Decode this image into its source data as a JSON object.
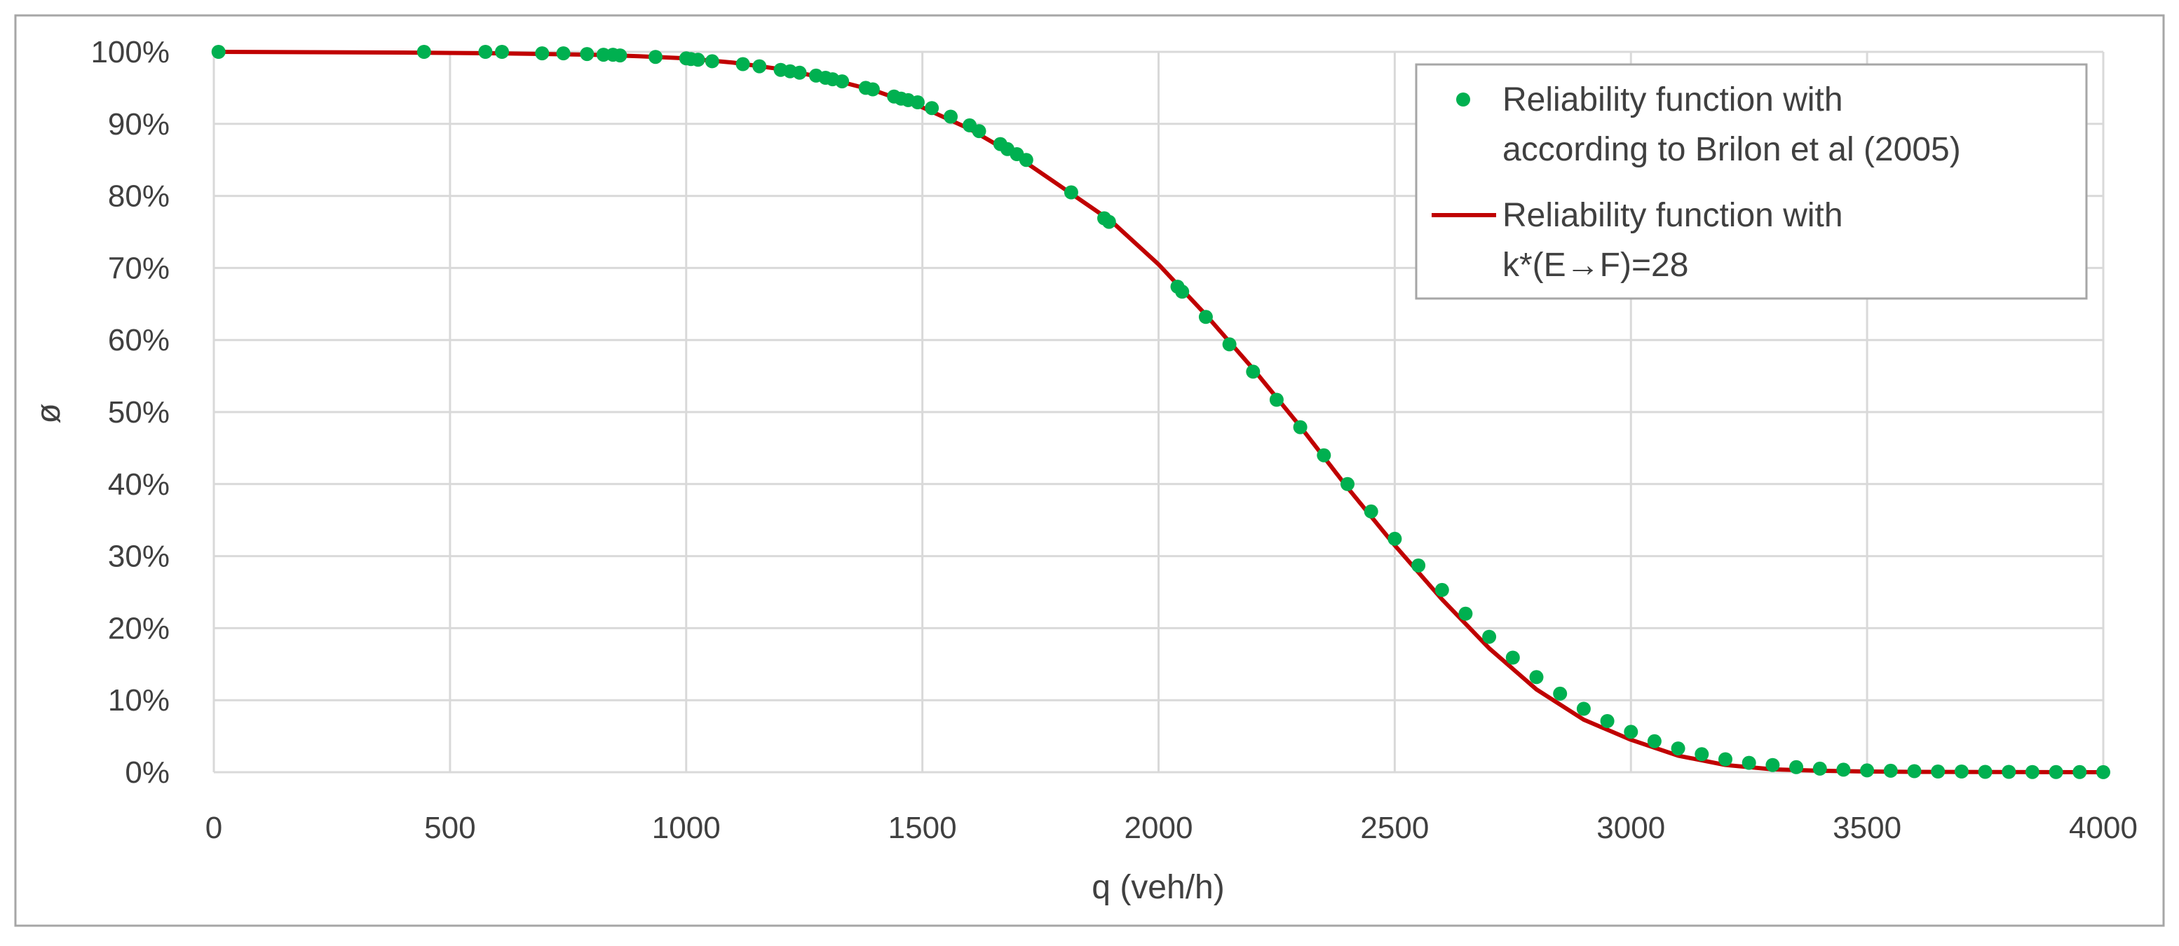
{
  "chart_data": {
    "type": "scatter",
    "title": "",
    "xlabel": "q (veh/h)",
    "ylabel": "ø",
    "xlim": [
      0,
      4000
    ],
    "ylim": [
      0,
      100
    ],
    "x_ticks": [
      "0",
      "500",
      "1000",
      "1500",
      "2000",
      "2500",
      "3000",
      "3500",
      "4000"
    ],
    "y_ticks": [
      "0%",
      "10%",
      "20%",
      "30%",
      "40%",
      "50%",
      "60%",
      "70%",
      "80%",
      "90%",
      "100%"
    ],
    "grid": true,
    "legend_position": "top-right",
    "series": [
      {
        "name": "Reliability function with according to Brilon et al (2005)",
        "legend_lines": [
          "Reliability function with",
          "according to Brilon et al (2005)"
        ],
        "type": "scatter",
        "color": "#00b050",
        "points": [
          [
            10,
            100
          ],
          [
            445,
            100
          ],
          [
            575,
            100
          ],
          [
            610,
            100
          ],
          [
            695,
            99.8
          ],
          [
            740,
            99.8
          ],
          [
            790,
            99.7
          ],
          [
            825,
            99.6
          ],
          [
            845,
            99.6
          ],
          [
            860,
            99.5
          ],
          [
            935,
            99.3
          ],
          [
            1000,
            99.1
          ],
          [
            1010,
            99.0
          ],
          [
            1025,
            98.9
          ],
          [
            1055,
            98.7
          ],
          [
            1120,
            98.3
          ],
          [
            1155,
            98.0
          ],
          [
            1200,
            97.5
          ],
          [
            1220,
            97.3
          ],
          [
            1240,
            97.1
          ],
          [
            1275,
            96.7
          ],
          [
            1295,
            96.4
          ],
          [
            1310,
            96.2
          ],
          [
            1330,
            95.9
          ],
          [
            1380,
            95.0
          ],
          [
            1395,
            94.8
          ],
          [
            1440,
            93.8
          ],
          [
            1455,
            93.5
          ],
          [
            1470,
            93.3
          ],
          [
            1490,
            93.0
          ],
          [
            1520,
            92.2
          ],
          [
            1560,
            91.0
          ],
          [
            1600,
            89.8
          ],
          [
            1620,
            89.0
          ],
          [
            1665,
            87.2
          ],
          [
            1680,
            86.5
          ],
          [
            1700,
            85.8
          ],
          [
            1720,
            85.0
          ],
          [
            1815,
            80.5
          ],
          [
            1885,
            76.9
          ],
          [
            1895,
            76.4
          ],
          [
            2040,
            67.4
          ],
          [
            2050,
            66.7
          ],
          [
            2100,
            63.2
          ],
          [
            2150,
            59.4
          ],
          [
            2200,
            55.6
          ],
          [
            2250,
            51.7
          ],
          [
            2300,
            47.9
          ],
          [
            2350,
            44.0
          ],
          [
            2400,
            40.0
          ],
          [
            2450,
            36.2
          ],
          [
            2500,
            32.4
          ],
          [
            2550,
            28.7
          ],
          [
            2600,
            25.3
          ],
          [
            2650,
            22.0
          ],
          [
            2700,
            18.8
          ],
          [
            2750,
            15.9
          ],
          [
            2800,
            13.2
          ],
          [
            2850,
            10.9
          ],
          [
            2900,
            8.8
          ],
          [
            2950,
            7.1
          ],
          [
            3000,
            5.6
          ],
          [
            3050,
            4.3
          ],
          [
            3100,
            3.3
          ],
          [
            3150,
            2.5
          ],
          [
            3200,
            1.8
          ],
          [
            3250,
            1.3
          ],
          [
            3300,
            1.0
          ],
          [
            3350,
            0.7
          ],
          [
            3400,
            0.5
          ],
          [
            3450,
            0.35
          ],
          [
            3500,
            0.25
          ],
          [
            3550,
            0.2
          ],
          [
            3600,
            0.15
          ],
          [
            3650,
            0.1
          ],
          [
            3700,
            0.1
          ],
          [
            3750,
            0.05
          ],
          [
            3800,
            0.05
          ],
          [
            3850,
            0.03
          ],
          [
            3900,
            0.02
          ],
          [
            3950,
            0.02
          ],
          [
            4000,
            0.01
          ]
        ]
      },
      {
        "name": "Reliability function with k*(E→F)=28",
        "legend_lines": [
          "Reliability function with",
          "k*(E→F)=28"
        ],
        "type": "line",
        "color": "#c00000",
        "points": [
          [
            0,
            100
          ],
          [
            400,
            99.9
          ],
          [
            600,
            99.8
          ],
          [
            800,
            99.6
          ],
          [
            900,
            99.4
          ],
          [
            1000,
            99.1
          ],
          [
            1100,
            98.5
          ],
          [
            1200,
            97.6
          ],
          [
            1300,
            96.3
          ],
          [
            1400,
            94.6
          ],
          [
            1500,
            92.3
          ],
          [
            1600,
            89.3
          ],
          [
            1700,
            85.5
          ],
          [
            1800,
            81.0
          ],
          [
            1900,
            76.5
          ],
          [
            2000,
            70.5
          ],
          [
            2100,
            63.5
          ],
          [
            2200,
            56.0
          ],
          [
            2300,
            48.0
          ],
          [
            2400,
            39.5
          ],
          [
            2500,
            31.5
          ],
          [
            2600,
            24.0
          ],
          [
            2700,
            17.2
          ],
          [
            2800,
            11.5
          ],
          [
            2900,
            7.3
          ],
          [
            3000,
            4.5
          ],
          [
            3100,
            2.3
          ],
          [
            3200,
            1.0
          ],
          [
            3300,
            0.4
          ],
          [
            3400,
            0.2
          ],
          [
            3500,
            0.1
          ],
          [
            3600,
            0.05
          ],
          [
            4000,
            0
          ]
        ]
      }
    ]
  }
}
